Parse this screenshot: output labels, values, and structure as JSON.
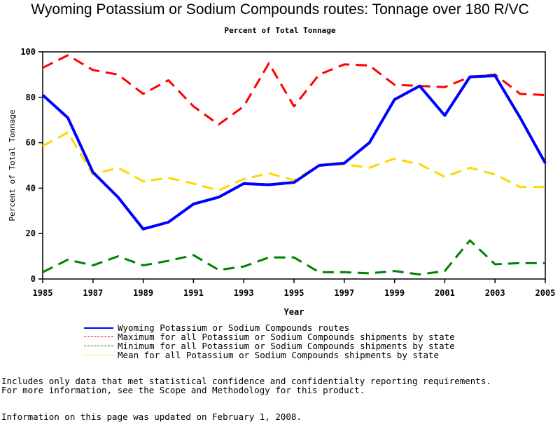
{
  "chart_data": {
    "type": "line",
    "title": "Wyoming Potassium or Sodium Compounds routes: Tonnage over 180 R/VC",
    "subtitle": "Percent of Total Tonnage",
    "xlabel": "Year",
    "ylabel": "Percent of Total Tonnage",
    "xlim": [
      1985,
      2005
    ],
    "ylim": [
      0,
      100
    ],
    "x_ticks": [
      "1985",
      "1987",
      "1989",
      "1991",
      "1993",
      "1995",
      "1997",
      "1999",
      "2001",
      "2003",
      "2005"
    ],
    "y_ticks": [
      "0",
      "20",
      "40",
      "60",
      "80",
      "100"
    ],
    "grid": false,
    "legend_position": "bottom",
    "x": [
      1985,
      1986,
      1987,
      1988,
      1989,
      1990,
      1991,
      1992,
      1993,
      1994,
      1995,
      1996,
      1997,
      1998,
      1999,
      2000,
      2001,
      2002,
      2003,
      2004,
      2005
    ],
    "series": [
      {
        "name": "Wyoming Potassium or Sodium Compounds routes",
        "color": "#0000ff",
        "style": "solid",
        "values": [
          81,
          71,
          47,
          36,
          22,
          25,
          33,
          36,
          42,
          41.5,
          42.5,
          50,
          51,
          60,
          79,
          85,
          72,
          89,
          89.5,
          71,
          51
        ]
      },
      {
        "name": "Maximum for all Potassium or Sodium Compounds shipments by state",
        "color": "#ff0000",
        "style": "dashed",
        "values": [
          93,
          98.5,
          92,
          90,
          81.5,
          87.5,
          76,
          68,
          76,
          95,
          76,
          90,
          94.5,
          94,
          85.5,
          85,
          84.5,
          89,
          90,
          81.5,
          81
        ]
      },
      {
        "name": "Minimum for all Potassium or Sodium Compounds shipments by state",
        "color": "#008000",
        "style": "dashed",
        "values": [
          3,
          8.5,
          6,
          10,
          6,
          8,
          10.5,
          4,
          5.5,
          9.5,
          9.5,
          3,
          3,
          2.5,
          3.5,
          2,
          3.5,
          17,
          6.5,
          7,
          7
        ]
      },
      {
        "name": "Mean for all Potassium or Sodium Compounds shipments by state",
        "color": "#ffd700",
        "style": "dashed",
        "values": [
          58.5,
          64.5,
          46,
          49,
          43,
          44.5,
          42,
          39,
          44,
          46.5,
          43.5,
          50,
          50.5,
          49,
          53,
          50.5,
          45,
          49,
          46,
          40.5,
          40.5
        ]
      }
    ]
  },
  "footer": {
    "line1": "Includes only data that met statistical confidence and confidentialty reporting requirements.",
    "line2": "For more information, see the Scope and Methodology for this product.",
    "line3": "Information on this page was updated on February 1, 2008."
  }
}
